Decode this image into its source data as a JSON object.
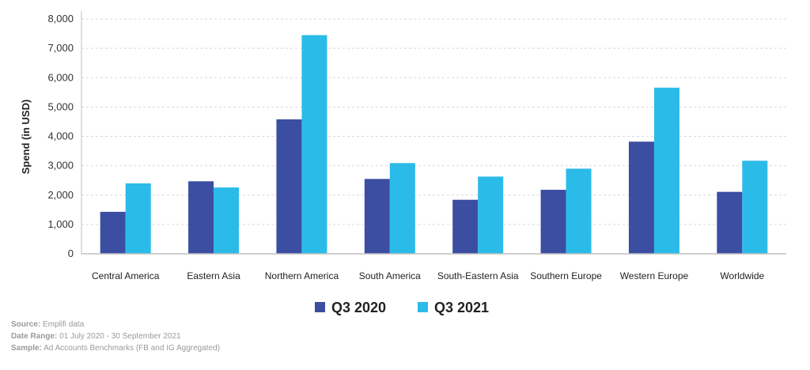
{
  "chart_data": {
    "type": "bar",
    "title": "",
    "xlabel": "",
    "ylabel": "Spend (in USD)",
    "ylim": [
      0,
      8000
    ],
    "yticks": [
      0,
      1000,
      2000,
      3000,
      4000,
      5000,
      6000,
      7000,
      8000
    ],
    "ytick_labels": [
      "0",
      "1,000",
      "2,000",
      "3,000",
      "4,000",
      "5,000",
      "6,000",
      "7,000",
      "8,000"
    ],
    "grid": true,
    "legend_position": "bottom-center",
    "categories": [
      "Central America",
      "Eastern Asia",
      "Northern America",
      "South America",
      "South-Eastern Asia",
      "Southern Europe",
      "Western Europe",
      "Worldwide"
    ],
    "series": [
      {
        "name": "Q3 2020",
        "color": "#3b4ea2",
        "values": [
          1430,
          2470,
          4580,
          2550,
          1840,
          2180,
          3820,
          2110
        ]
      },
      {
        "name": "Q3 2021",
        "color": "#2bbbe9",
        "values": [
          2400,
          2260,
          7450,
          3090,
          2630,
          2900,
          5660,
          3170
        ]
      }
    ]
  },
  "notes": {
    "source_label": "Source:",
    "source_value": " Emplifi data",
    "range_label": "Date Range:",
    "range_value": " 01 July 2020 - 30 September 2021",
    "sample_label": "Sample:",
    "sample_value": " Ad Accounts Benchmarks (FB and IG Aggregated)"
  }
}
